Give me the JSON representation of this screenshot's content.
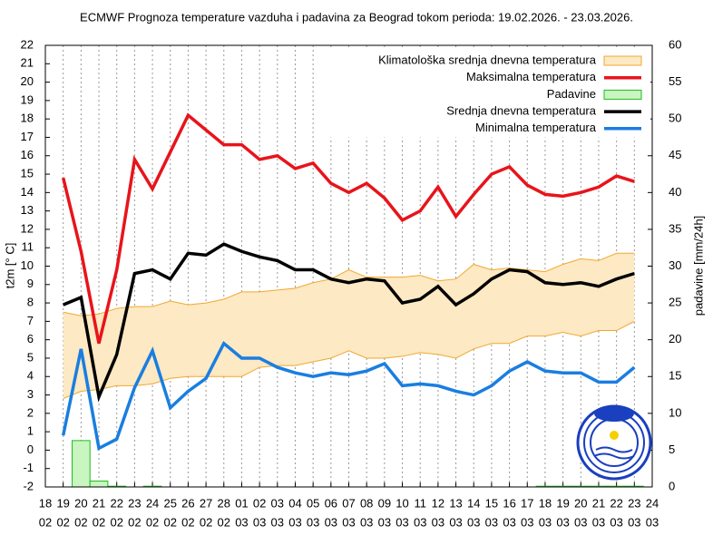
{
  "chart_data": {
    "type": "line",
    "title": "ECMWF Prognoza temperature vazduha i padavina za Beograd tokom perioda: 19.02.2026. - 23.03.2026.",
    "ylabel": "t2m [° C]",
    "y2label": "padavine [mm/24h]",
    "categories": [
      "18",
      "19",
      "20",
      "21",
      "22",
      "23",
      "24",
      "25",
      "26",
      "27",
      "28",
      "01",
      "02",
      "03",
      "04",
      "05",
      "06",
      "07",
      "08",
      "09",
      "10",
      "11",
      "12",
      "13",
      "14",
      "15",
      "16",
      "17",
      "18",
      "19",
      "20",
      "21",
      "22",
      "23",
      "24"
    ],
    "category_months": [
      "02",
      "02",
      "02",
      "02",
      "02",
      "02",
      "02",
      "02",
      "02",
      "02",
      "02",
      "03",
      "03",
      "03",
      "03",
      "03",
      "03",
      "03",
      "03",
      "03",
      "03",
      "03",
      "03",
      "03",
      "03",
      "03",
      "03",
      "03",
      "03",
      "03",
      "03",
      "03",
      "03",
      "03",
      "03"
    ],
    "ylim": [
      -2,
      22
    ],
    "yticks": [
      -2,
      -1,
      0,
      1,
      2,
      3,
      4,
      5,
      6,
      7,
      8,
      9,
      10,
      11,
      12,
      13,
      14,
      15,
      16,
      17,
      18,
      19,
      20,
      21,
      22
    ],
    "y2lim": [
      0,
      60
    ],
    "y2ticks": [
      0,
      5,
      10,
      15,
      20,
      25,
      30,
      35,
      40,
      45,
      50,
      55,
      60
    ],
    "grid": true,
    "legend": "top-right",
    "series": [
      {
        "name": "Klimatološka srednja dnevna temperatura",
        "type": "band",
        "color": "#fde9c3",
        "edge_color": "#f0a830",
        "upper": [
          null,
          7.5,
          7.3,
          7.4,
          7.7,
          7.8,
          7.8,
          8.1,
          7.9,
          8.0,
          8.2,
          8.6,
          8.6,
          8.7,
          8.8,
          9.1,
          9.3,
          9.8,
          9.4,
          9.4,
          9.4,
          9.5,
          9.2,
          9.3,
          10.1,
          9.8,
          9.9,
          9.8,
          9.7,
          10.1,
          10.4,
          10.3,
          10.7,
          10.7,
          null
        ],
        "lower": [
          null,
          2.8,
          3.2,
          3.3,
          3.5,
          3.5,
          3.6,
          3.9,
          4.0,
          4.0,
          4.0,
          4.0,
          4.5,
          4.6,
          4.6,
          4.8,
          5.0,
          5.4,
          5.0,
          5.0,
          5.1,
          5.3,
          5.2,
          5.0,
          5.5,
          5.8,
          5.8,
          6.2,
          6.2,
          6.4,
          6.2,
          6.5,
          6.5,
          7.0,
          null
        ]
      },
      {
        "name": "Maksimalna temperatura",
        "type": "line",
        "color": "#e8141b",
        "values": [
          null,
          14.8,
          10.8,
          5.8,
          9.8,
          15.8,
          14.2,
          16.2,
          18.2,
          17.4,
          16.6,
          16.6,
          15.8,
          16.0,
          15.3,
          15.6,
          14.5,
          14.0,
          14.5,
          13.7,
          12.5,
          13.0,
          14.3,
          12.7,
          13.9,
          15.0,
          15.4,
          14.4,
          13.9,
          13.8,
          14.0,
          14.3,
          14.9,
          14.6,
          null
        ]
      },
      {
        "name": "Padavine",
        "type": "bar",
        "axis": "y2",
        "color": "#c8f5c0",
        "edge_color": "#22bb22",
        "values": [
          null,
          0,
          6.3,
          0.8,
          0.1,
          0,
          0.1,
          0,
          0,
          0,
          0,
          0,
          0,
          0,
          0,
          0,
          0,
          0,
          0,
          0,
          0,
          0,
          0,
          0,
          0,
          0,
          0,
          0,
          0.1,
          0.1,
          0.1,
          0.1,
          0.1,
          0.1,
          null
        ]
      },
      {
        "name": "Srednja dnevna temperatura",
        "type": "line",
        "color": "#000000",
        "values": [
          null,
          7.9,
          8.3,
          2.9,
          5.2,
          9.6,
          9.8,
          9.3,
          10.7,
          10.6,
          11.2,
          10.8,
          10.5,
          10.3,
          9.8,
          9.8,
          9.3,
          9.1,
          9.3,
          9.2,
          8.0,
          8.2,
          8.9,
          7.9,
          8.5,
          9.3,
          9.8,
          9.7,
          9.1,
          9.0,
          9.1,
          8.9,
          9.3,
          9.6,
          null
        ]
      },
      {
        "name": "Minimalna temperatura",
        "type": "line",
        "color": "#1a7ee0",
        "values": [
          null,
          0.8,
          5.5,
          0.1,
          0.6,
          3.4,
          5.4,
          2.3,
          3.2,
          3.9,
          5.8,
          5.0,
          5.0,
          4.5,
          4.2,
          4.0,
          4.2,
          4.1,
          4.3,
          4.7,
          3.5,
          3.6,
          3.5,
          3.2,
          3.0,
          3.5,
          4.3,
          4.8,
          4.3,
          4.2,
          4.2,
          3.7,
          3.7,
          4.5,
          null
        ]
      }
    ]
  }
}
